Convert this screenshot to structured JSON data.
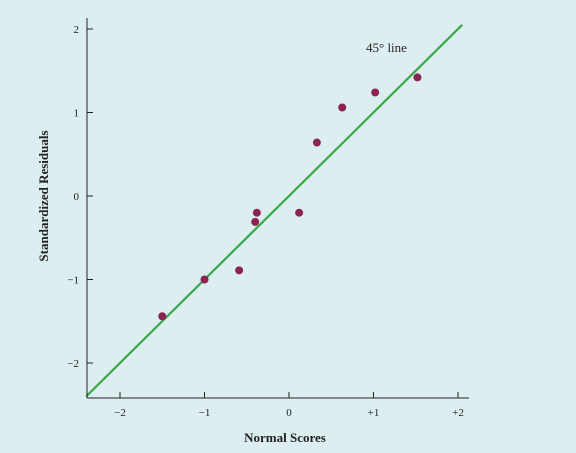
{
  "chart_data": {
    "type": "scatter",
    "title": "",
    "xlabel": "Normal Scores",
    "ylabel": "Standardized Residuals",
    "xlim": [
      -2.4,
      2.05
    ],
    "ylim": [
      -2.4,
      2.1
    ],
    "x_ticks": [
      {
        "value": -2,
        "label": "−2"
      },
      {
        "value": -1,
        "label": "−1"
      },
      {
        "value": 0,
        "label": "0"
      },
      {
        "value": 1,
        "label": "+1"
      },
      {
        "value": 2,
        "label": "+2"
      }
    ],
    "y_ticks": [
      {
        "value": -2,
        "label": "−2"
      },
      {
        "value": -1,
        "label": "−1"
      },
      {
        "value": 0,
        "label": "0"
      },
      {
        "value": 1,
        "label": "1"
      },
      {
        "value": 2,
        "label": "2"
      }
    ],
    "points": [
      {
        "x": -1.5,
        "y": -1.44
      },
      {
        "x": -1.0,
        "y": -1.0
      },
      {
        "x": -0.59,
        "y": -0.89
      },
      {
        "x": -0.4,
        "y": -0.31
      },
      {
        "x": -0.38,
        "y": -0.2
      },
      {
        "x": 0.12,
        "y": -0.2
      },
      {
        "x": 0.33,
        "y": 0.64
      },
      {
        "x": 0.63,
        "y": 1.06
      },
      {
        "x": 1.02,
        "y": 1.24
      },
      {
        "x": 1.52,
        "y": 1.42
      }
    ],
    "reference_line": {
      "slope": 1,
      "intercept": 0,
      "label": "45° line"
    },
    "grid": false,
    "colors": {
      "background": "#ddeef0",
      "point": "#8a2553",
      "line": "#3ba84a",
      "axis": "#222222"
    }
  }
}
